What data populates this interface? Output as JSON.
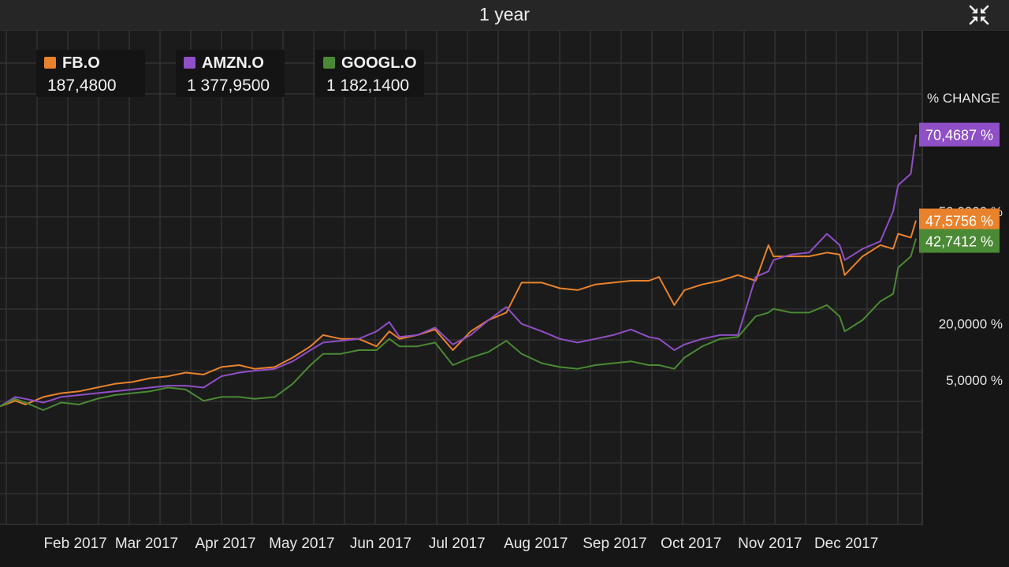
{
  "header": {
    "title": "1 year",
    "collapse_icon": "collapse-arrows-icon"
  },
  "legend": [
    {
      "ticker": "FB.O",
      "value": "187,4800",
      "color": "#e9822c"
    },
    {
      "ticker": "AMZN.O",
      "value": "1 377,9500",
      "color": "#8f4fc6"
    },
    {
      "ticker": "GOOGL.O",
      "value": "1 182,1400",
      "color": "#4a8a34"
    }
  ],
  "chart_data": {
    "type": "line",
    "y_axis_title": "% CHANGE",
    "y_ticks": [
      {
        "label": "5,0000 %",
        "value": 5
      },
      {
        "label": "20,0000 %",
        "value": 20
      },
      {
        "label": "50,0000 %",
        "value": 50
      }
    ],
    "x_ticks": [
      {
        "label": "Feb 2017",
        "x": "2017-02-01"
      },
      {
        "label": "Mar 2017",
        "x": "2017-03-01"
      },
      {
        "label": "Apr 2017",
        "x": "2017-04-01"
      },
      {
        "label": "May 2017",
        "x": "2017-05-01"
      },
      {
        "label": "Jun 2017",
        "x": "2017-06-01"
      },
      {
        "label": "Jul 2017",
        "x": "2017-07-01"
      },
      {
        "label": "Aug 2017",
        "x": "2017-08-01"
      },
      {
        "label": "Sep 2017",
        "x": "2017-09-01"
      },
      {
        "label": "Oct 2017",
        "x": "2017-10-01"
      },
      {
        "label": "Nov 2017",
        "x": "2017-11-01"
      },
      {
        "label": "Dec 2017",
        "x": "2017-12-01"
      }
    ],
    "x_range": [
      "2017-01-03",
      "2017-12-29"
    ],
    "grid": true,
    "series": [
      {
        "name": "FB.O",
        "color": "#e9822c",
        "end_label": "47,5756 %",
        "points": [
          [
            "2017-01-03",
            -2
          ],
          [
            "2017-01-09",
            -0.5
          ],
          [
            "2017-01-13",
            -1.5
          ],
          [
            "2017-01-20",
            0.5
          ],
          [
            "2017-01-27",
            1.5
          ],
          [
            "2017-02-03",
            2
          ],
          [
            "2017-02-10",
            3
          ],
          [
            "2017-02-17",
            4
          ],
          [
            "2017-02-24",
            4.5
          ],
          [
            "2017-03-03",
            5.5
          ],
          [
            "2017-03-10",
            6
          ],
          [
            "2017-03-17",
            7
          ],
          [
            "2017-03-24",
            6.5
          ],
          [
            "2017-03-31",
            8.5
          ],
          [
            "2017-04-07",
            9
          ],
          [
            "2017-04-13",
            8
          ],
          [
            "2017-04-21",
            8.5
          ],
          [
            "2017-04-28",
            11
          ],
          [
            "2017-05-05",
            14
          ],
          [
            "2017-05-10",
            17
          ],
          [
            "2017-05-17",
            16
          ],
          [
            "2017-05-24",
            16
          ],
          [
            "2017-05-31",
            14
          ],
          [
            "2017-06-05",
            18
          ],
          [
            "2017-06-09",
            16
          ],
          [
            "2017-06-16",
            17
          ],
          [
            "2017-06-23",
            18.5
          ],
          [
            "2017-06-30",
            13
          ],
          [
            "2017-07-07",
            18
          ],
          [
            "2017-07-14",
            21
          ],
          [
            "2017-07-21",
            23
          ],
          [
            "2017-07-27",
            31
          ],
          [
            "2017-08-04",
            31
          ],
          [
            "2017-08-11",
            29.5
          ],
          [
            "2017-08-18",
            29
          ],
          [
            "2017-08-25",
            30.5
          ],
          [
            "2017-09-01",
            31
          ],
          [
            "2017-09-08",
            31.5
          ],
          [
            "2017-09-15",
            31.5
          ],
          [
            "2017-09-19",
            32.5
          ],
          [
            "2017-09-25",
            25
          ],
          [
            "2017-09-29",
            29
          ],
          [
            "2017-10-06",
            30.5
          ],
          [
            "2017-10-13",
            31.5
          ],
          [
            "2017-10-20",
            33
          ],
          [
            "2017-10-27",
            31.5
          ],
          [
            "2017-11-01",
            41
          ],
          [
            "2017-11-03",
            38
          ],
          [
            "2017-11-10",
            38
          ],
          [
            "2017-11-17",
            38
          ],
          [
            "2017-11-24",
            39
          ],
          [
            "2017-11-29",
            38.5
          ],
          [
            "2017-12-01",
            33
          ],
          [
            "2017-12-08",
            38
          ],
          [
            "2017-12-15",
            41
          ],
          [
            "2017-12-20",
            40
          ],
          [
            "2017-12-22",
            44
          ],
          [
            "2017-12-27",
            43
          ],
          [
            "2017-12-29",
            47.5756
          ]
        ]
      },
      {
        "name": "AMZN.O",
        "color": "#8f4fc6",
        "end_label": "70,4687 %",
        "points": [
          [
            "2017-01-03",
            -2
          ],
          [
            "2017-01-09",
            0.5
          ],
          [
            "2017-01-13",
            0
          ],
          [
            "2017-01-20",
            -1
          ],
          [
            "2017-01-27",
            0.5
          ],
          [
            "2017-02-03",
            1
          ],
          [
            "2017-02-10",
            1.5
          ],
          [
            "2017-02-17",
            2
          ],
          [
            "2017-02-24",
            2.5
          ],
          [
            "2017-03-03",
            3
          ],
          [
            "2017-03-10",
            3.5
          ],
          [
            "2017-03-17",
            3.5
          ],
          [
            "2017-03-24",
            3
          ],
          [
            "2017-03-31",
            6
          ],
          [
            "2017-04-07",
            7
          ],
          [
            "2017-04-13",
            7.5
          ],
          [
            "2017-04-21",
            8
          ],
          [
            "2017-04-28",
            10
          ],
          [
            "2017-05-05",
            13
          ],
          [
            "2017-05-10",
            15
          ],
          [
            "2017-05-17",
            15.5
          ],
          [
            "2017-05-24",
            16
          ],
          [
            "2017-05-31",
            18
          ],
          [
            "2017-06-05",
            20.5
          ],
          [
            "2017-06-09",
            16.5
          ],
          [
            "2017-06-16",
            17
          ],
          [
            "2017-06-23",
            19
          ],
          [
            "2017-06-30",
            14.5
          ],
          [
            "2017-07-07",
            17
          ],
          [
            "2017-07-14",
            21
          ],
          [
            "2017-07-21",
            24.5
          ],
          [
            "2017-07-27",
            20
          ],
          [
            "2017-08-04",
            18
          ],
          [
            "2017-08-11",
            16
          ],
          [
            "2017-08-18",
            15
          ],
          [
            "2017-08-25",
            16
          ],
          [
            "2017-09-01",
            17
          ],
          [
            "2017-09-08",
            18.5
          ],
          [
            "2017-09-15",
            16.5
          ],
          [
            "2017-09-19",
            16
          ],
          [
            "2017-09-25",
            13
          ],
          [
            "2017-09-29",
            14.5
          ],
          [
            "2017-10-06",
            16
          ],
          [
            "2017-10-13",
            17
          ],
          [
            "2017-10-20",
            17
          ],
          [
            "2017-10-27",
            32.5
          ],
          [
            "2017-11-01",
            34
          ],
          [
            "2017-11-03",
            37
          ],
          [
            "2017-11-10",
            38.5
          ],
          [
            "2017-11-17",
            39
          ],
          [
            "2017-11-24",
            44
          ],
          [
            "2017-11-29",
            41
          ],
          [
            "2017-12-01",
            37
          ],
          [
            "2017-12-08",
            40
          ],
          [
            "2017-12-15",
            42
          ],
          [
            "2017-12-20",
            50
          ],
          [
            "2017-12-22",
            57
          ],
          [
            "2017-12-27",
            60
          ],
          [
            "2017-12-29",
            70.4687
          ]
        ]
      },
      {
        "name": "GOOGL.O",
        "color": "#4a8a34",
        "end_label": "42,7412 %",
        "points": [
          [
            "2017-01-03",
            -2
          ],
          [
            "2017-01-09",
            0
          ],
          [
            "2017-01-13",
            -1
          ],
          [
            "2017-01-20",
            -3
          ],
          [
            "2017-01-27",
            -1
          ],
          [
            "2017-02-03",
            -1.5
          ],
          [
            "2017-02-10",
            0
          ],
          [
            "2017-02-17",
            1
          ],
          [
            "2017-02-24",
            1.5
          ],
          [
            "2017-03-03",
            2
          ],
          [
            "2017-03-10",
            3
          ],
          [
            "2017-03-17",
            2.5
          ],
          [
            "2017-03-24",
            -0.5
          ],
          [
            "2017-03-31",
            0.5
          ],
          [
            "2017-04-07",
            0.5
          ],
          [
            "2017-04-13",
            0
          ],
          [
            "2017-04-21",
            0.5
          ],
          [
            "2017-04-28",
            4
          ],
          [
            "2017-05-05",
            9
          ],
          [
            "2017-05-10",
            12
          ],
          [
            "2017-05-17",
            12
          ],
          [
            "2017-05-24",
            13
          ],
          [
            "2017-05-31",
            13
          ],
          [
            "2017-06-05",
            16
          ],
          [
            "2017-06-09",
            14
          ],
          [
            "2017-06-16",
            14
          ],
          [
            "2017-06-23",
            15
          ],
          [
            "2017-06-30",
            9
          ],
          [
            "2017-07-07",
            11
          ],
          [
            "2017-07-14",
            12.5
          ],
          [
            "2017-07-21",
            15.5
          ],
          [
            "2017-07-27",
            12
          ],
          [
            "2017-08-04",
            9.5
          ],
          [
            "2017-08-11",
            8.5
          ],
          [
            "2017-08-18",
            8
          ],
          [
            "2017-08-25",
            9
          ],
          [
            "2017-09-01",
            9.5
          ],
          [
            "2017-09-08",
            10
          ],
          [
            "2017-09-15",
            9
          ],
          [
            "2017-09-19",
            9
          ],
          [
            "2017-09-25",
            8
          ],
          [
            "2017-09-29",
            11
          ],
          [
            "2017-10-06",
            14
          ],
          [
            "2017-10-13",
            16
          ],
          [
            "2017-10-20",
            16.5
          ],
          [
            "2017-10-27",
            22
          ],
          [
            "2017-11-01",
            23
          ],
          [
            "2017-11-03",
            24
          ],
          [
            "2017-11-10",
            23
          ],
          [
            "2017-11-17",
            23
          ],
          [
            "2017-11-24",
            25
          ],
          [
            "2017-11-29",
            22
          ],
          [
            "2017-12-01",
            18
          ],
          [
            "2017-12-08",
            21
          ],
          [
            "2017-12-15",
            26
          ],
          [
            "2017-12-20",
            28
          ],
          [
            "2017-12-22",
            35
          ],
          [
            "2017-12-27",
            38
          ],
          [
            "2017-12-29",
            42.7412
          ]
        ]
      }
    ]
  }
}
